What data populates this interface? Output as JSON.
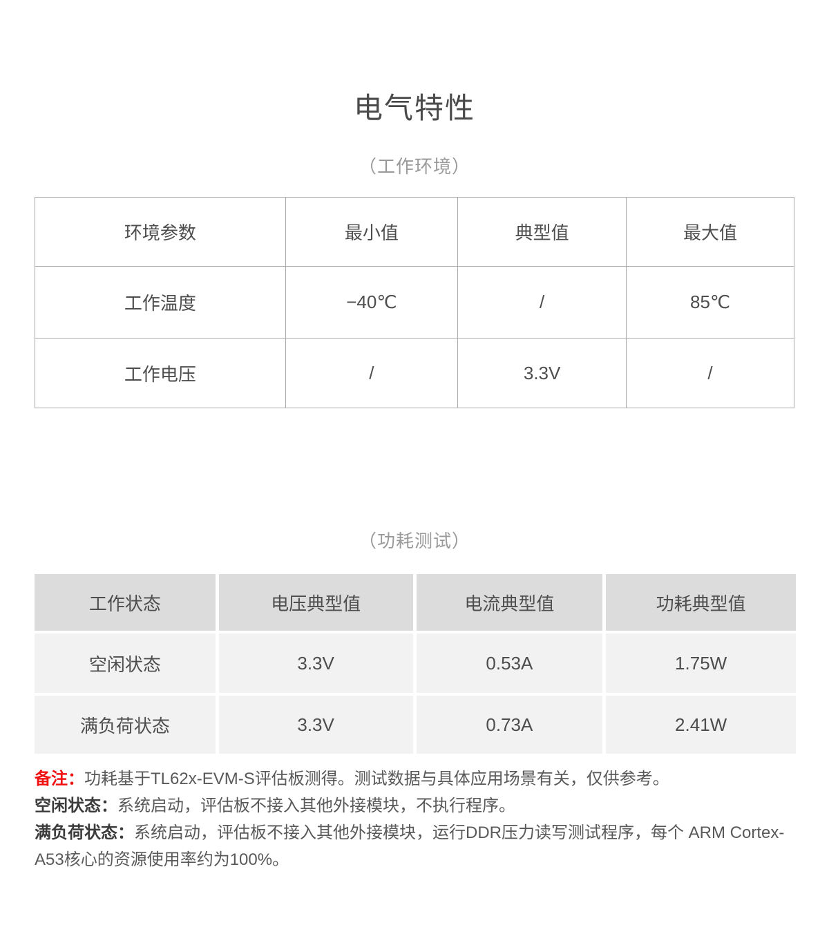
{
  "page": {
    "title": "电气特性"
  },
  "sections": [
    {
      "caption": "（工作环境）",
      "table": {
        "headers": [
          "环境参数",
          "最小值",
          "典型值",
          "最大值"
        ],
        "rows": [
          [
            "工作温度",
            "−40℃",
            "/",
            "85℃"
          ],
          [
            "工作电压",
            "/",
            "3.3V",
            "/"
          ]
        ]
      }
    },
    {
      "caption": "（功耗测试）",
      "table": {
        "headers": [
          "工作状态",
          "电压典型值",
          "电流典型值",
          "功耗典型值"
        ],
        "rows": [
          [
            "空闲状态",
            "3.3V",
            "0.53A",
            "1.75W"
          ],
          [
            "满负荷状态",
            "3.3V",
            "0.73A",
            "2.41W"
          ]
        ]
      }
    }
  ],
  "notes": [
    {
      "label": "备注：",
      "text": "功耗基于TL62x-EVM-S评估板测得。测试数据与具体应用场景有关，仅供参考。"
    },
    {
      "label": "空闲状态：",
      "text": "系统启动，评估板不接入其他外接模块，不执行程序。"
    },
    {
      "label": "满负荷状态：",
      "text": "系统启动，评估板不接入其他外接模块，运行DDR压力读写测试程序，每个 ARM Cortex-A53核心的资源使用率约为100%。"
    }
  ],
  "colors": {
    "title": "#4a4a4a",
    "caption": "#9a9a9a",
    "table_border": "#a9a9a9",
    "table_text": "#4d4d4d",
    "power_header_bg": "#dcdcdc",
    "power_row_bg": "#f2f2f2",
    "note_red": "#f01010",
    "note_text": "#595959"
  }
}
